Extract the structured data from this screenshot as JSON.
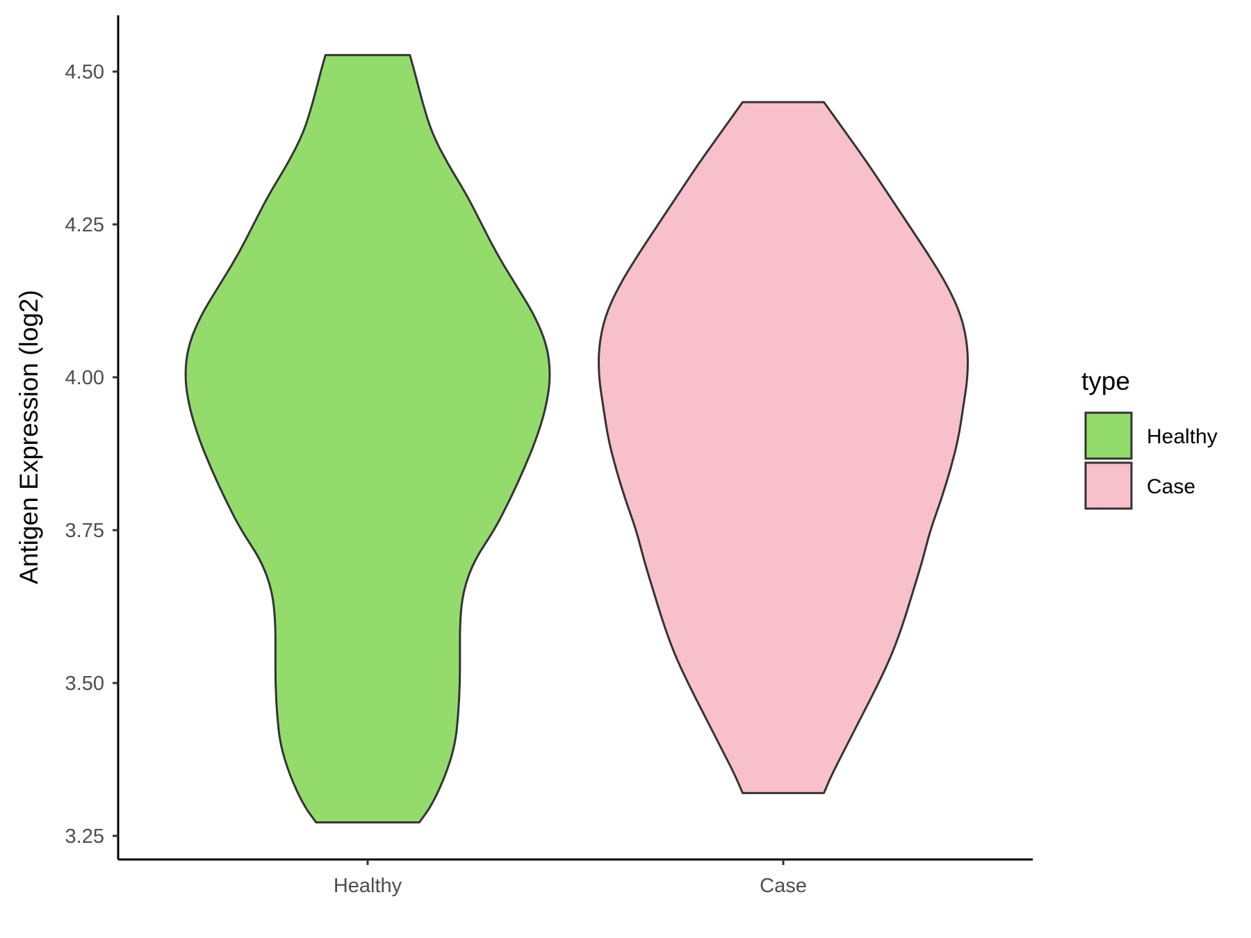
{
  "chart_data": {
    "type": "violin",
    "title": "",
    "xlabel": "",
    "ylabel": "Antigen Expression (log2)",
    "ylim": [
      3.21,
      4.59
    ],
    "yticks": [
      3.25,
      3.5,
      3.75,
      4.0,
      4.25,
      4.5
    ],
    "ytick_labels": [
      "3.25",
      "3.50",
      "3.75",
      "4.00",
      "4.25",
      "4.50"
    ],
    "categories": [
      "Healthy",
      "Case"
    ],
    "grid": false,
    "legend": {
      "title": "type",
      "position": "right",
      "entries": [
        {
          "label": "Healthy",
          "color": "#93DC6C"
        },
        {
          "label": "Case",
          "color": "#F7C0CB"
        }
      ]
    },
    "series": [
      {
        "name": "Healthy",
        "color": "#93DC6C",
        "min": 3.272,
        "max": 4.527,
        "density": [
          [
            3.272,
            0.33
          ],
          [
            3.3,
            0.41
          ],
          [
            3.35,
            0.5
          ],
          [
            3.4,
            0.56
          ],
          [
            3.45,
            0.58
          ],
          [
            3.5,
            0.59
          ],
          [
            3.55,
            0.59
          ],
          [
            3.6,
            0.59
          ],
          [
            3.65,
            0.61
          ],
          [
            3.7,
            0.68
          ],
          [
            3.75,
            0.81
          ],
          [
            3.8,
            0.91
          ],
          [
            3.85,
            1.0
          ],
          [
            3.9,
            1.08
          ],
          [
            3.95,
            1.14
          ],
          [
            4.0,
            1.17
          ],
          [
            4.05,
            1.15
          ],
          [
            4.1,
            1.07
          ],
          [
            4.15,
            0.95
          ],
          [
            4.2,
            0.83
          ],
          [
            4.25,
            0.73
          ],
          [
            4.3,
            0.63
          ],
          [
            4.35,
            0.51
          ],
          [
            4.4,
            0.41
          ],
          [
            4.45,
            0.35
          ],
          [
            4.5,
            0.3
          ],
          [
            4.527,
            0.27
          ]
        ]
      },
      {
        "name": "Case",
        "color": "#F7C0CB",
        "min": 3.32,
        "max": 4.45,
        "density": [
          [
            3.32,
            0.26
          ],
          [
            3.35,
            0.31
          ],
          [
            3.4,
            0.41
          ],
          [
            3.45,
            0.51
          ],
          [
            3.5,
            0.61
          ],
          [
            3.55,
            0.7
          ],
          [
            3.6,
            0.77
          ],
          [
            3.65,
            0.83
          ],
          [
            3.7,
            0.89
          ],
          [
            3.75,
            0.94
          ],
          [
            3.8,
            1.01
          ],
          [
            3.85,
            1.07
          ],
          [
            3.9,
            1.12
          ],
          [
            3.95,
            1.15
          ],
          [
            4.0,
            1.18
          ],
          [
            4.05,
            1.18
          ],
          [
            4.1,
            1.14
          ],
          [
            4.15,
            1.05
          ],
          [
            4.2,
            0.93
          ],
          [
            4.25,
            0.8
          ],
          [
            4.3,
            0.67
          ],
          [
            4.35,
            0.54
          ],
          [
            4.4,
            0.4
          ],
          [
            4.45,
            0.26
          ]
        ]
      }
    ]
  }
}
